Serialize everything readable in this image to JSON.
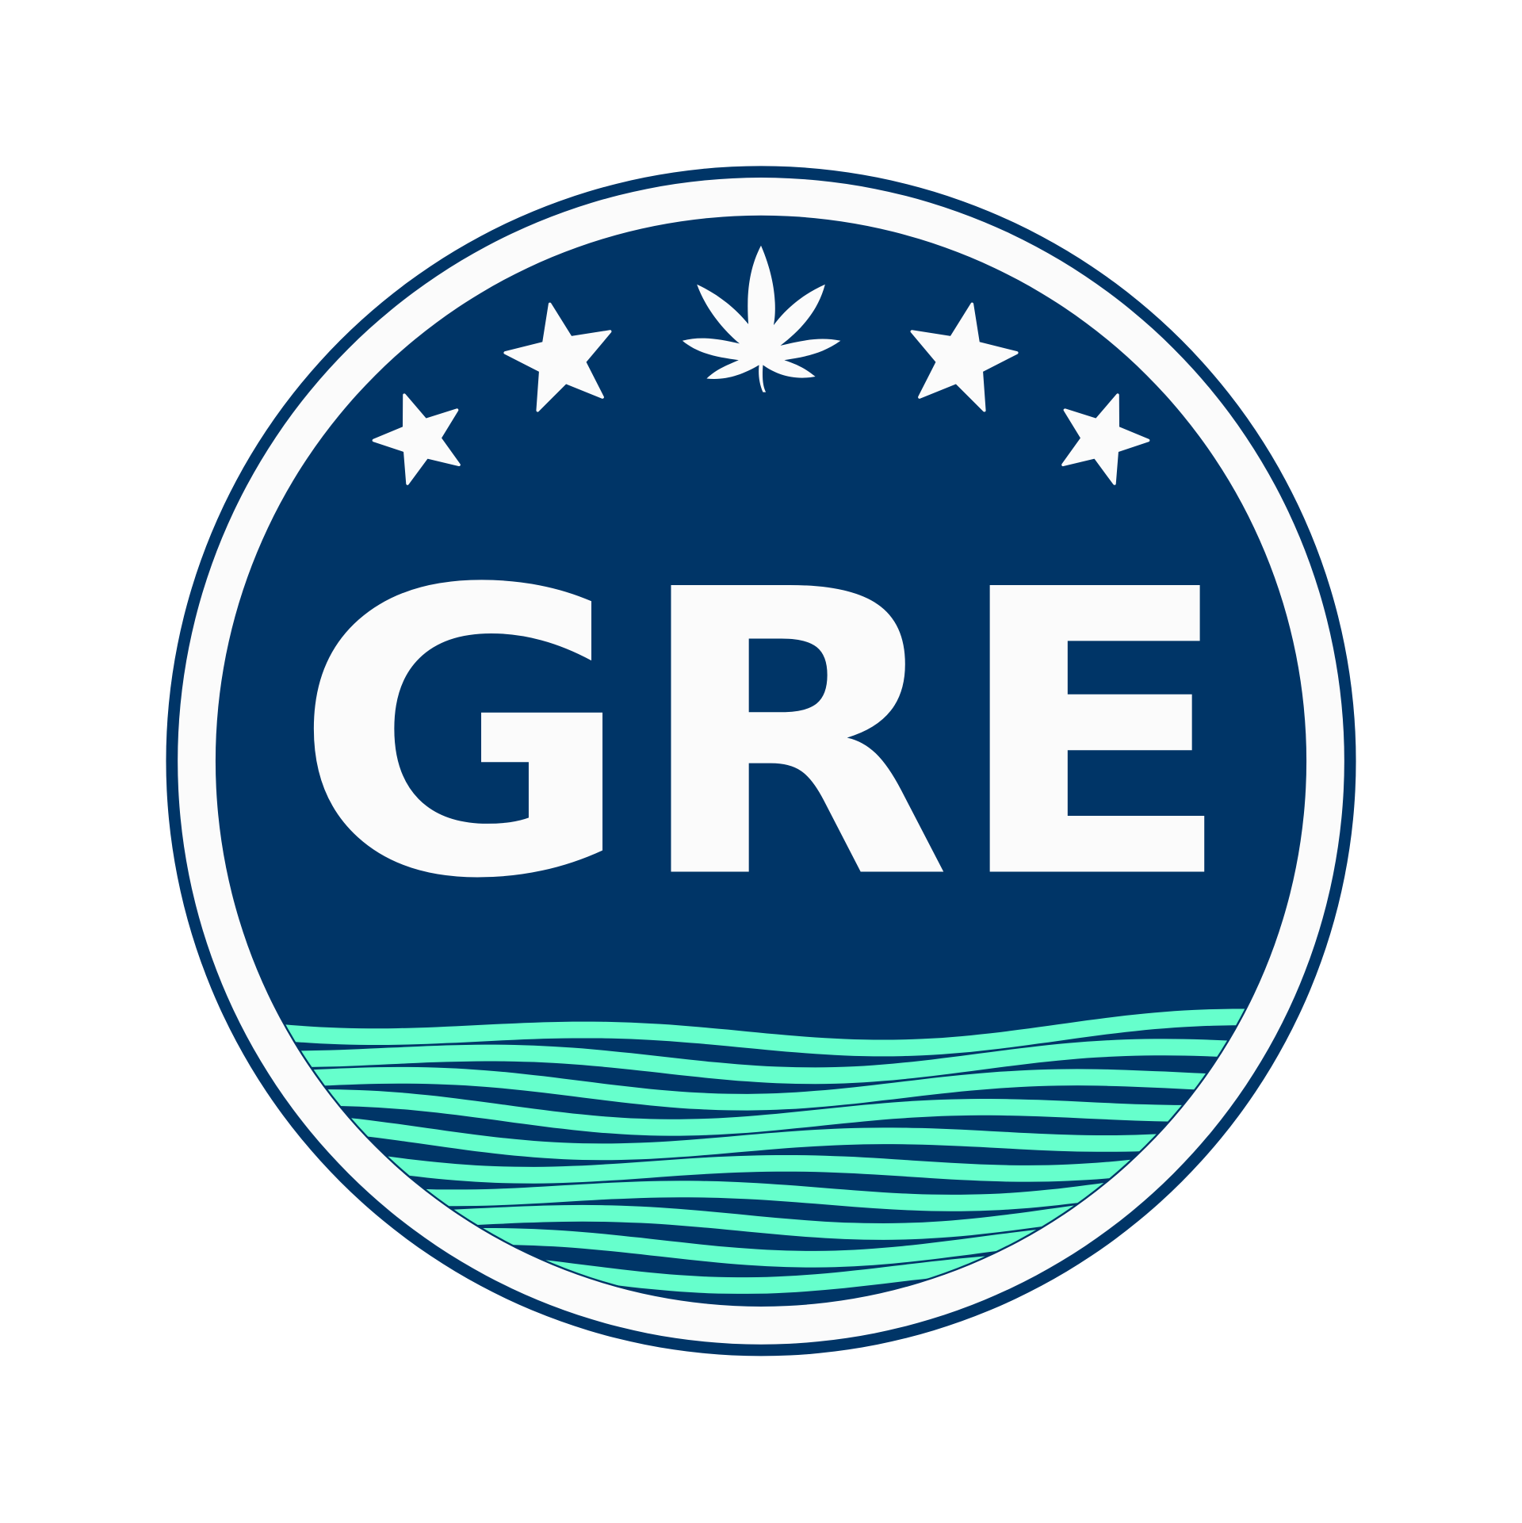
{
  "logo": {
    "text": "GRE"
  }
}
